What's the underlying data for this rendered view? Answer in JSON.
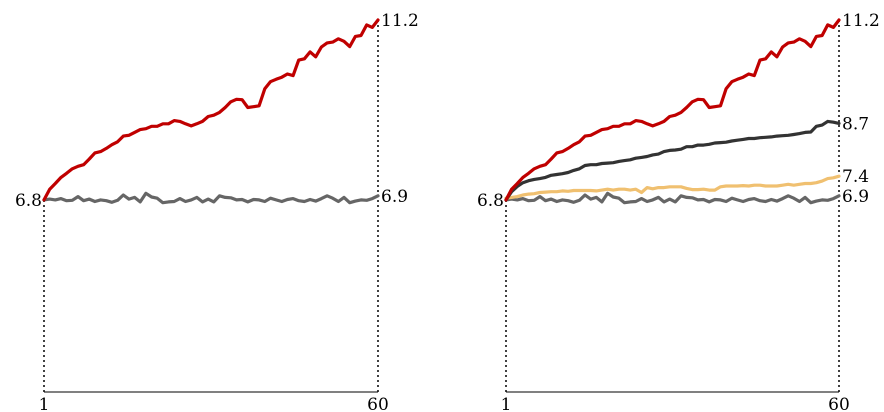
{
  "chart_data": [
    {
      "type": "line",
      "title": "",
      "xlabel": "",
      "ylabel": "",
      "x_ticks": [
        "1",
        "60"
      ],
      "xlim": [
        1,
        60
      ],
      "ylim": [
        2.1,
        11.2
      ],
      "grid": false,
      "start_label": "6.8",
      "series": [
        {
          "color": "#c00000",
          "end_label": "11.2",
          "values": [
            6.8,
            7.06,
            7.2,
            7.35,
            7.45,
            7.56,
            7.62,
            7.66,
            7.8,
            7.95,
            7.98,
            8.06,
            8.15,
            8.22,
            8.36,
            8.38,
            8.45,
            8.52,
            8.54,
            8.6,
            8.6,
            8.66,
            8.66,
            8.74,
            8.72,
            8.66,
            8.61,
            8.66,
            8.72,
            8.84,
            8.87,
            8.94,
            9.06,
            9.2,
            9.26,
            9.25,
            9.06,
            9.08,
            9.1,
            9.52,
            9.69,
            9.75,
            9.8,
            9.88,
            9.84,
            10.22,
            10.25,
            10.42,
            10.3,
            10.54,
            10.64,
            10.66,
            10.74,
            10.68,
            10.55,
            10.8,
            10.82,
            11.08,
            11.02,
            11.2
          ]
        },
        {
          "color": "#666666",
          "end_label": "6.9",
          "values": [
            6.8,
            6.82,
            6.8,
            6.83,
            6.78,
            6.79,
            6.88,
            6.78,
            6.82,
            6.76,
            6.8,
            6.78,
            6.74,
            6.79,
            6.92,
            6.82,
            6.86,
            6.75,
            6.96,
            6.87,
            6.84,
            6.73,
            6.75,
            6.76,
            6.83,
            6.76,
            6.8,
            6.86,
            6.75,
            6.82,
            6.75,
            6.9,
            6.86,
            6.85,
            6.8,
            6.81,
            6.75,
            6.81,
            6.8,
            6.76,
            6.84,
            6.8,
            6.76,
            6.81,
            6.83,
            6.78,
            6.76,
            6.81,
            6.77,
            6.83,
            6.9,
            6.84,
            6.76,
            6.86,
            6.73,
            6.77,
            6.8,
            6.79,
            6.83,
            6.9
          ]
        }
      ]
    },
    {
      "type": "line",
      "title": "",
      "xlabel": "",
      "ylabel": "",
      "x_ticks": [
        "1",
        "60"
      ],
      "xlim": [
        1,
        60
      ],
      "ylim": [
        2.1,
        11.2
      ],
      "grid": false,
      "start_label": "6.8",
      "series": [
        {
          "color": "#c00000",
          "end_label": "11.2",
          "values": [
            6.8,
            7.06,
            7.2,
            7.35,
            7.45,
            7.56,
            7.62,
            7.66,
            7.8,
            7.95,
            7.98,
            8.06,
            8.15,
            8.22,
            8.36,
            8.38,
            8.45,
            8.52,
            8.54,
            8.6,
            8.6,
            8.66,
            8.66,
            8.74,
            8.72,
            8.66,
            8.61,
            8.66,
            8.72,
            8.84,
            8.87,
            8.94,
            9.06,
            9.2,
            9.26,
            9.25,
            9.06,
            9.08,
            9.1,
            9.52,
            9.69,
            9.75,
            9.8,
            9.88,
            9.84,
            10.22,
            10.25,
            10.42,
            10.3,
            10.54,
            10.64,
            10.66,
            10.74,
            10.68,
            10.55,
            10.8,
            10.82,
            11.08,
            11.02,
            11.2
          ]
        },
        {
          "color": "#333333",
          "end_label": "8.7",
          "values": [
            6.8,
            7.0,
            7.13,
            7.22,
            7.27,
            7.3,
            7.32,
            7.35,
            7.4,
            7.42,
            7.44,
            7.47,
            7.52,
            7.56,
            7.64,
            7.66,
            7.66,
            7.69,
            7.7,
            7.71,
            7.74,
            7.76,
            7.78,
            7.82,
            7.84,
            7.86,
            7.9,
            7.92,
            7.98,
            8.01,
            8.02,
            8.04,
            8.1,
            8.1,
            8.14,
            8.14,
            8.16,
            8.19,
            8.2,
            8.21,
            8.24,
            8.26,
            8.28,
            8.3,
            8.3,
            8.32,
            8.33,
            8.34,
            8.36,
            8.37,
            8.38,
            8.4,
            8.42,
            8.45,
            8.46,
            8.6,
            8.63,
            8.72,
            8.7,
            8.67
          ]
        },
        {
          "color": "#f0c070",
          "end_label": "7.4",
          "values": [
            6.84,
            6.86,
            6.88,
            6.92,
            6.94,
            6.95,
            6.98,
            6.99,
            7.0,
            7.0,
            7.02,
            7.01,
            7.03,
            7.03,
            7.03,
            7.03,
            7.02,
            7.04,
            7.06,
            7.04,
            7.06,
            7.06,
            7.04,
            7.06,
            6.98,
            7.1,
            7.07,
            7.1,
            7.1,
            7.12,
            7.12,
            7.12,
            7.08,
            7.05,
            7.05,
            7.06,
            7.04,
            7.04,
            7.12,
            7.14,
            7.14,
            7.14,
            7.15,
            7.14,
            7.16,
            7.16,
            7.14,
            7.14,
            7.14,
            7.16,
            7.18,
            7.16,
            7.18,
            7.2,
            7.2,
            7.22,
            7.26,
            7.32,
            7.34,
            7.38
          ]
        },
        {
          "color": "#666666",
          "end_label": "6.9",
          "values": [
            6.8,
            6.82,
            6.8,
            6.83,
            6.78,
            6.79,
            6.88,
            6.78,
            6.82,
            6.76,
            6.8,
            6.78,
            6.74,
            6.79,
            6.92,
            6.82,
            6.86,
            6.75,
            6.96,
            6.87,
            6.84,
            6.73,
            6.75,
            6.76,
            6.83,
            6.76,
            6.8,
            6.86,
            6.75,
            6.82,
            6.75,
            6.9,
            6.86,
            6.85,
            6.8,
            6.81,
            6.75,
            6.81,
            6.8,
            6.76,
            6.84,
            6.8,
            6.76,
            6.81,
            6.83,
            6.78,
            6.76,
            6.81,
            6.77,
            6.83,
            6.9,
            6.84,
            6.76,
            6.86,
            6.73,
            6.77,
            6.8,
            6.79,
            6.83,
            6.9
          ]
        }
      ]
    }
  ]
}
